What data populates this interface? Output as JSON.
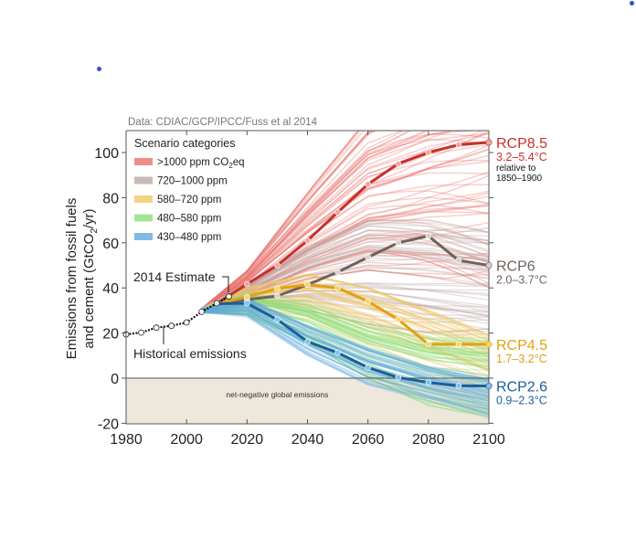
{
  "page": {
    "marker_dots": [
      {
        "name": "blue-marker-dot-1",
        "color": "#3d4fc4"
      },
      {
        "name": "blue-marker-dot-2",
        "color": "#3d4fc4"
      }
    ]
  },
  "chart_data": {
    "type": "line",
    "source": "Data: CDIAC/GCP/IPCC/Fuss et al 2014",
    "title": "",
    "xlabel": "",
    "ylabel_line1": "Emissions from fossil fuels",
    "ylabel_line2_pre": "and cement (GtCO",
    "ylabel_line2_sub": "2",
    "ylabel_line2_post": "/yr)",
    "xlim": [
      1980,
      2100
    ],
    "ylim": [
      -20,
      110
    ],
    "x_ticks": [
      1980,
      2000,
      2020,
      2040,
      2060,
      2080,
      2100
    ],
    "x_tick_labels": [
      "1980",
      "2000",
      "2020",
      "2040",
      "2060",
      "2080",
      "2100"
    ],
    "y_ticks": [
      -20,
      0,
      20,
      40,
      60,
      80,
      100
    ],
    "y_tick_labels": [
      "-20",
      "0",
      "20",
      "40",
      "60",
      "80",
      "100"
    ],
    "grid": false,
    "legend": {
      "title": "Scenario categories",
      "placement": "top-left",
      "entries": [
        {
          "label_pre": ">1000 ppm CO",
          "label_sub": "2",
          "label_post": "eq",
          "color": "#e8706a"
        },
        {
          "label_pre": "720–1000 ppm",
          "label_sub": "",
          "label_post": "",
          "color": "#b9aaa6"
        },
        {
          "label_pre": "580–720 ppm",
          "label_sub": "",
          "label_post": "",
          "color": "#f2c766"
        },
        {
          "label_pre": "480–580 ppm",
          "label_sub": "",
          "label_post": "",
          "color": "#8fe07a"
        },
        {
          "label_pre": "430–480 ppm",
          "label_sub": "",
          "label_post": "",
          "color": "#5fa9dc"
        }
      ]
    },
    "historical": {
      "name": "Historical emissions",
      "color": "#111111",
      "x": [
        1980,
        1985,
        1990,
        1995,
        2000,
        2005,
        2010,
        2014
      ],
      "y": [
        19.4,
        20.2,
        22.4,
        23.2,
        24.7,
        29.4,
        33.2,
        36.2
      ]
    },
    "estimate_2014": {
      "label": "2014 Estimate",
      "x": 2014,
      "y": 36.2
    },
    "negative_region": {
      "label": "net-negative global emissions",
      "y_from": -20,
      "y_to": 0,
      "color": "#ede7dc"
    },
    "scenario_ensembles": [
      {
        "category": ">1000 ppm CO2eq",
        "color": "#e8706a",
        "start_x": 2005,
        "start_y": 29,
        "x": [
          2005,
          2020,
          2040,
          2060,
          2080,
          2100
        ],
        "low": [
          29,
          36,
          44,
          48,
          45,
          40
        ],
        "high": [
          31,
          48,
          82,
          115,
          130,
          140
        ],
        "count": 70
      },
      {
        "category": "720–1000 ppm",
        "color": "#b9aaa6",
        "start_x": 2005,
        "start_y": 29,
        "x": [
          2005,
          2020,
          2040,
          2060,
          2080,
          2100
        ],
        "low": [
          29,
          33,
          30,
          24,
          20,
          18
        ],
        "high": [
          31,
          42,
          58,
          70,
          70,
          65
        ],
        "count": 55
      },
      {
        "category": "580–720 ppm",
        "color": "#f2c766",
        "start_x": 2005,
        "start_y": 29,
        "x": [
          2005,
          2020,
          2040,
          2060,
          2080,
          2100
        ],
        "low": [
          29,
          30,
          26,
          15,
          5,
          -5
        ],
        "high": [
          31,
          40,
          46,
          40,
          30,
          20
        ],
        "count": 45
      },
      {
        "category": "480–580 ppm",
        "color": "#8fe07a",
        "start_x": 2005,
        "start_y": 29,
        "x": [
          2005,
          2020,
          2040,
          2060,
          2080,
          2100
        ],
        "low": [
          29,
          28,
          16,
          0,
          -12,
          -18
        ],
        "high": [
          31,
          38,
          34,
          25,
          20,
          18
        ],
        "count": 55
      },
      {
        "category": "430–480 ppm",
        "color": "#5fa9dc",
        "start_x": 2005,
        "start_y": 29,
        "x": [
          2005,
          2020,
          2040,
          2060,
          2080,
          2100
        ],
        "low": [
          29,
          27,
          10,
          -3,
          -10,
          -18
        ],
        "high": [
          31,
          36,
          24,
          14,
          6,
          2
        ],
        "count": 45
      }
    ],
    "series": [
      {
        "name": "RCP8.5",
        "temp": "3.2–5.4°C",
        "note_line1": "relative to",
        "note_line2": "1850–1900",
        "color": "#c8302b",
        "point_color": "#f3a39c",
        "x": [
          2010,
          2020,
          2030,
          2040,
          2050,
          2060,
          2070,
          2080,
          2090,
          2100
        ],
        "y": [
          33,
          41.7,
          50,
          61,
          73.5,
          86,
          95,
          100,
          103.5,
          104.5
        ]
      },
      {
        "name": "RCP6",
        "temp": "2.0–3.7°C",
        "color": "#6f625d",
        "point_color": "#d9d0cc",
        "x": [
          2010,
          2020,
          2030,
          2040,
          2050,
          2060,
          2070,
          2080,
          2090,
          2100
        ],
        "y": [
          33,
          34.8,
          36.4,
          41.4,
          47,
          53.6,
          60,
          63,
          52.2,
          50
        ]
      },
      {
        "name": "RCP4.5",
        "temp": "1.7–3.2°C",
        "color": "#e3a013",
        "point_color": "#f7d56a",
        "x": [
          2010,
          2020,
          2030,
          2040,
          2050,
          2060,
          2070,
          2080,
          2090,
          2100
        ],
        "y": [
          33,
          36,
          39.7,
          41.4,
          40,
          34,
          26,
          15,
          15,
          15
        ]
      },
      {
        "name": "RCP2.6",
        "temp": "0.9–2.3°C",
        "color": "#1c5e9c",
        "point_color": "#7ec1ea",
        "x": [
          2010,
          2020,
          2030,
          2040,
          2050,
          2060,
          2070,
          2080,
          2090,
          2100
        ],
        "y": [
          33,
          33.2,
          26,
          16.2,
          11.3,
          4.7,
          0.3,
          -1.9,
          -3.4,
          -3.5
        ]
      }
    ],
    "annotations": [
      {
        "text": "2014 Estimate",
        "target": "estimate_2014"
      },
      {
        "text": "Historical emissions",
        "target": "historical"
      }
    ]
  }
}
